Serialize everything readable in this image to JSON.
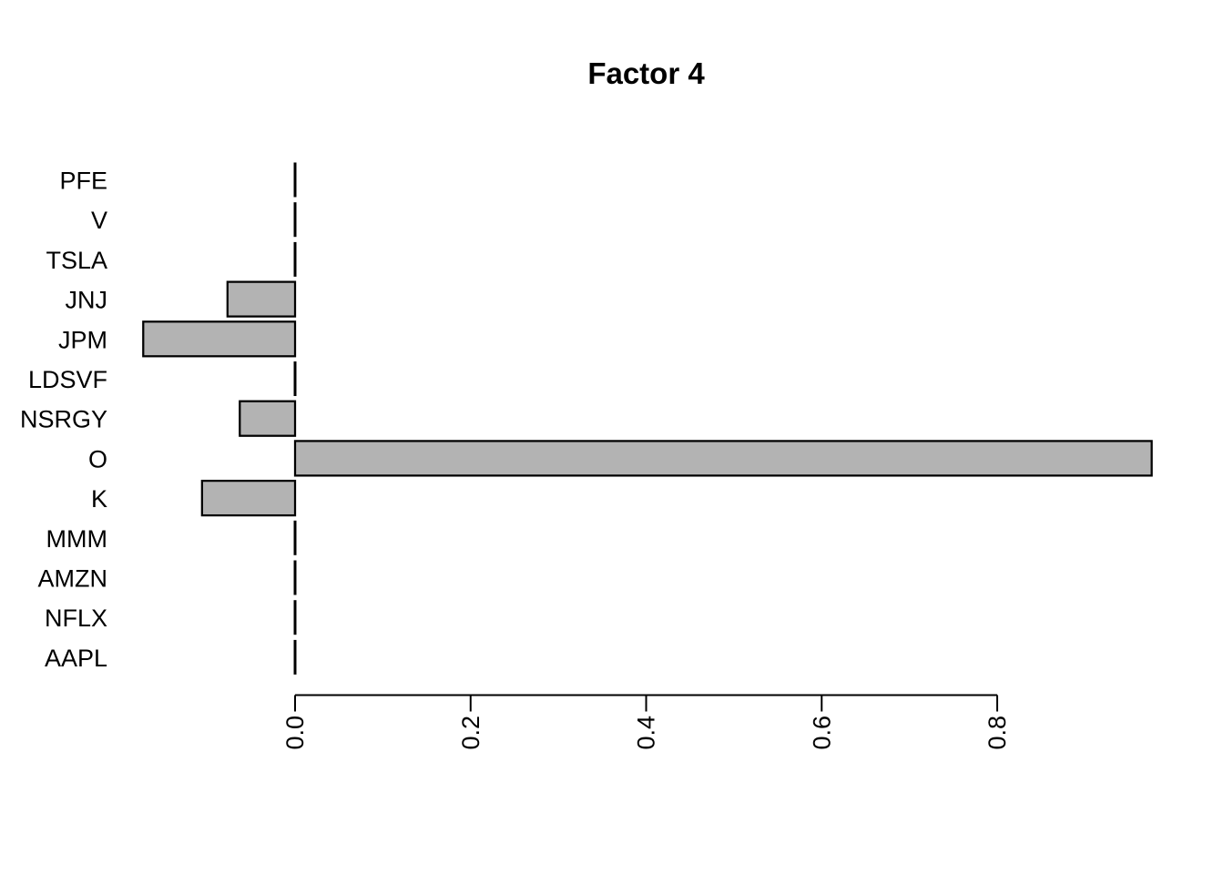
{
  "title": "Factor 4",
  "colors": {
    "background": "#ffffff",
    "bar_fill": "#b3b3b3",
    "bar_border": "#000000",
    "axis": "#000000",
    "text": "#000000"
  },
  "chart_data": {
    "type": "bar",
    "orientation": "horizontal",
    "title": "Factor 4",
    "xlabel": "",
    "ylabel": "",
    "categories": [
      "PFE",
      "V",
      "TSLA",
      "JNJ",
      "JPM",
      "LDSVF",
      "NSRGY",
      "O",
      "K",
      "MMM",
      "AMZN",
      "NFLX",
      "AAPL"
    ],
    "values": [
      0,
      0,
      0,
      -0.077,
      -0.173,
      0,
      -0.063,
      0.976,
      -0.106,
      0,
      0,
      0,
      0
    ],
    "x_ticks": [
      0.0,
      0.2,
      0.4,
      0.6,
      0.8
    ],
    "x_tick_labels": [
      "0.0",
      "0.2",
      "0.4",
      "0.6",
      "0.8"
    ],
    "xlim": [
      -0.2,
      0.98
    ],
    "grid": false,
    "legend": null,
    "x_tick_label_rotation_deg": 90,
    "bar_style": "filled-with-border",
    "zero_value_rendering": "vertical-line-segment-at-zero"
  }
}
